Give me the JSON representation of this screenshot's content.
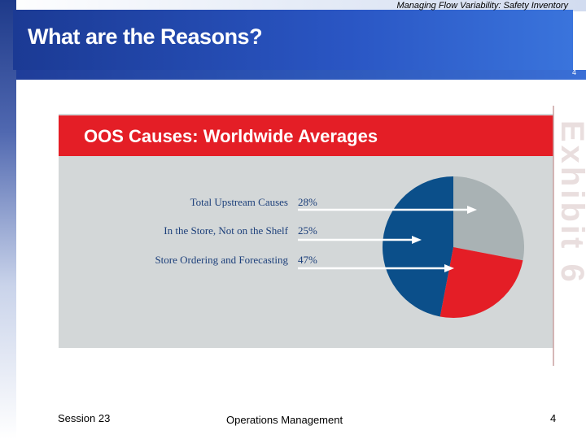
{
  "slide": {
    "subtitle": "Managing Flow Variability:  Safety Inventory",
    "title": "What are the Reasons?",
    "slide_number_top": "4"
  },
  "exhibit": {
    "header": "OOS Causes: Worldwide Averages",
    "side_label": "Exhibit 6"
  },
  "chart_data": {
    "type": "pie",
    "title": "OOS Causes: Worldwide Averages",
    "slices": [
      {
        "label": "Total Upstream Causes",
        "value": 28,
        "display": "28%",
        "color": "#a9b2b4"
      },
      {
        "label": "In the Store, Not on the Shelf",
        "value": 25,
        "display": "25%",
        "color": "#e41e26"
      },
      {
        "label": "Store Ordering and Forecasting",
        "value": 47,
        "display": "47%",
        "color": "#0b4f8a"
      }
    ]
  },
  "footer": {
    "session": "Session 23",
    "course": "Operations Management",
    "page": "4"
  }
}
